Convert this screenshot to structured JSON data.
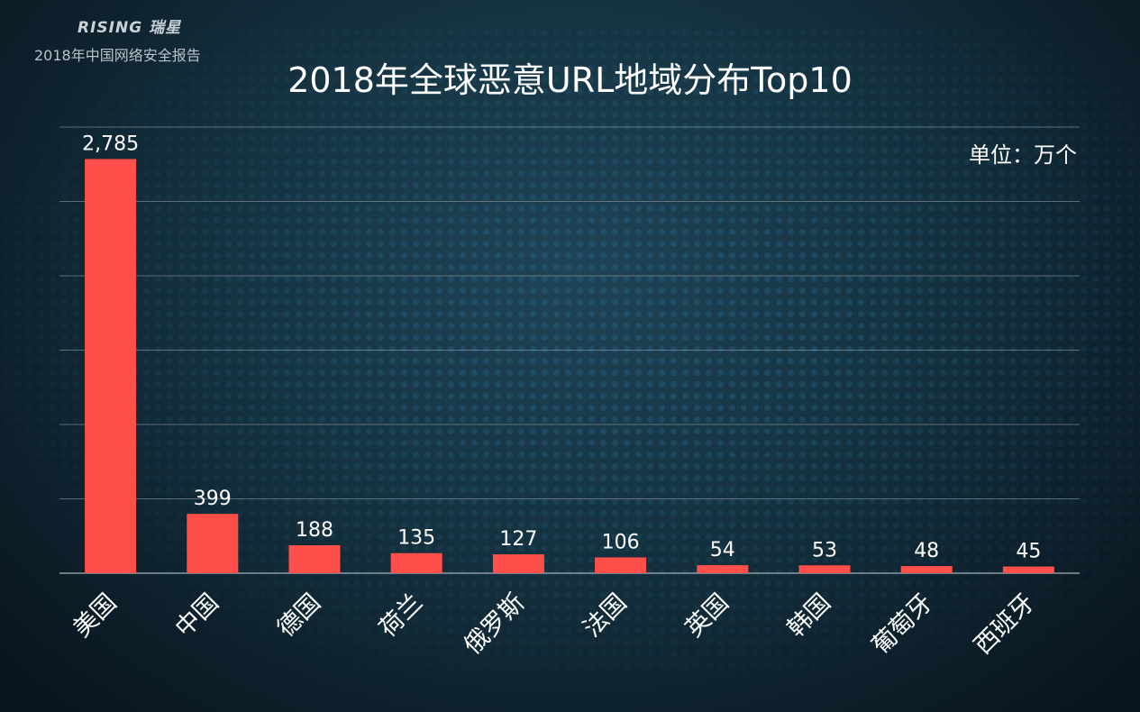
{
  "header": {
    "brand": "RISING 瑞星",
    "report": "2018年中国网络安全报告"
  },
  "colors": {
    "bar": "#ff4f4a",
    "grid": "#9aa7ae",
    "text": "#ffffff"
  },
  "chart_data": {
    "type": "bar",
    "title": "2018年全球恶意URL地域分布Top10",
    "unit": "单位：万个",
    "categories": [
      "美国",
      "中国",
      "德国",
      "荷兰",
      "俄罗斯",
      "法国",
      "英国",
      "韩国",
      "葡萄牙",
      "西班牙"
    ],
    "values": [
      2785,
      399,
      188,
      135,
      127,
      106,
      54,
      53,
      48,
      45
    ],
    "value_labels": [
      "2,785",
      "399",
      "188",
      "135",
      "127",
      "106",
      "54",
      "53",
      "48",
      "45"
    ],
    "ylim": [
      0,
      3000
    ],
    "ytick_step": 500,
    "grid": true,
    "legend": "none"
  }
}
